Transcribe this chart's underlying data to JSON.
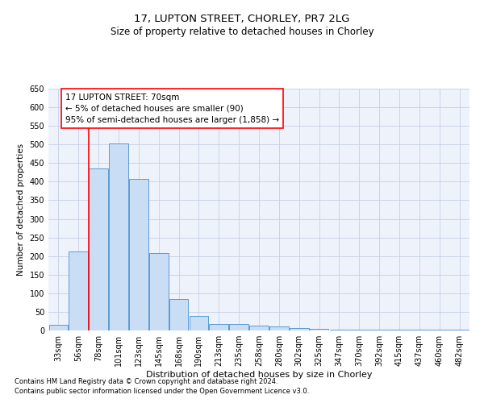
{
  "title1": "17, LUPTON STREET, CHORLEY, PR7 2LG",
  "title2": "Size of property relative to detached houses in Chorley",
  "xlabel": "Distribution of detached houses by size in Chorley",
  "ylabel": "Number of detached properties",
  "categories": [
    "33sqm",
    "56sqm",
    "78sqm",
    "101sqm",
    "123sqm",
    "145sqm",
    "168sqm",
    "190sqm",
    "213sqm",
    "235sqm",
    "258sqm",
    "280sqm",
    "302sqm",
    "325sqm",
    "347sqm",
    "370sqm",
    "392sqm",
    "415sqm",
    "437sqm",
    "460sqm",
    "482sqm"
  ],
  "values": [
    15,
    213,
    436,
    502,
    408,
    207,
    85,
    40,
    17,
    17,
    13,
    10,
    6,
    4,
    3,
    3,
    3,
    3,
    3,
    3,
    3
  ],
  "bar_color": "#c9ddf5",
  "bar_edge_color": "#5b9bd5",
  "red_line_x": 1.5,
  "annotation_line1": "17 LUPTON STREET: 70sqm",
  "annotation_line2": "← 5% of detached houses are smaller (90)",
  "annotation_line3": "95% of semi-detached houses are larger (1,858) →",
  "ylim": [
    0,
    650
  ],
  "yticks": [
    0,
    50,
    100,
    150,
    200,
    250,
    300,
    350,
    400,
    450,
    500,
    550,
    600,
    650
  ],
  "bg_color": "#eef2fa",
  "grid_color": "#c5cfe6",
  "footnote1": "Contains HM Land Registry data © Crown copyright and database right 2024.",
  "footnote2": "Contains public sector information licensed under the Open Government Licence v3.0.",
  "title1_fontsize": 9.5,
  "title2_fontsize": 8.5,
  "xlabel_fontsize": 8,
  "ylabel_fontsize": 7.5,
  "tick_fontsize": 7,
  "annot_fontsize": 7.5,
  "footnote_fontsize": 6
}
